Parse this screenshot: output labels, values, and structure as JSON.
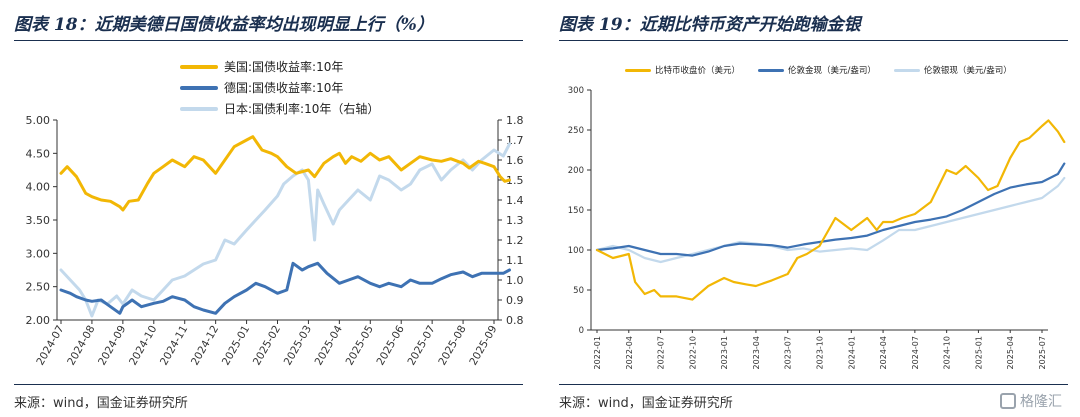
{
  "left": {
    "title": "图表 18：近期美德日国债收益率均出现明显上行（%）",
    "source": "来源：wind，国金证券研究所"
  },
  "right": {
    "title": "图表 19：近期比特币资产开始跑输金银",
    "source": "来源：wind，国金证券研究所"
  },
  "watermark": "格隆汇",
  "colors": {
    "gold": "#F2B705",
    "blue": "#3E72B3",
    "lightblue": "#C3D9EC",
    "title": "#1a2f4f"
  },
  "chart_data": [
    {
      "type": "line",
      "title": "",
      "ylim_left": [
        2.0,
        5.0
      ],
      "ylim_right": [
        0.8,
        1.8
      ],
      "yticks_left": [
        "5.00",
        "4.50",
        "4.00",
        "3.50",
        "3.00",
        "2.50",
        "2.00"
      ],
      "yticks_right": [
        "1.8",
        "1.7",
        "1.6",
        "1.5",
        "1.4",
        "1.3",
        "1.2",
        "1.1",
        "1.0",
        "0.9",
        "0.8"
      ],
      "x_ticks": [
        "2024-07",
        "2024-08",
        "2024-09",
        "2024-10",
        "2024-11",
        "2024-12",
        "2025-01",
        "2025-02",
        "2025-03",
        "2025-04",
        "2025-05",
        "2025-06",
        "2025-07",
        "2025-08",
        "2025-09"
      ],
      "grid": false,
      "legend_position": "top-center",
      "series": [
        {
          "name": "美国:国债收益率:10年",
          "axis": "left",
          "color": "#F2B705",
          "x": [
            0,
            0.2,
            0.5,
            0.8,
            1,
            1.3,
            1.6,
            1.9,
            2,
            2.2,
            2.5,
            2.8,
            3,
            3.3,
            3.6,
            4,
            4.3,
            4.6,
            5,
            5.3,
            5.6,
            6,
            6.2,
            6.5,
            6.8,
            7,
            7.3,
            7.6,
            8,
            8.2,
            8.5,
            8.8,
            9,
            9.2,
            9.4,
            9.7,
            10,
            10.3,
            10.6,
            11,
            11.3,
            11.6,
            12,
            12.3,
            12.6,
            13,
            13.2,
            13.5,
            13.7,
            14,
            14.2,
            14.35,
            14.5
          ],
          "values": [
            4.2,
            4.3,
            4.15,
            3.9,
            3.85,
            3.8,
            3.78,
            3.7,
            3.65,
            3.78,
            3.8,
            4.05,
            4.2,
            4.3,
            4.4,
            4.3,
            4.45,
            4.4,
            4.2,
            4.4,
            4.6,
            4.7,
            4.75,
            4.55,
            4.5,
            4.45,
            4.3,
            4.2,
            4.25,
            4.15,
            4.35,
            4.45,
            4.5,
            4.35,
            4.45,
            4.38,
            4.5,
            4.4,
            4.45,
            4.25,
            4.35,
            4.45,
            4.4,
            4.38,
            4.42,
            4.35,
            4.28,
            4.38,
            4.35,
            4.3,
            4.15,
            4.08,
            4.1
          ]
        },
        {
          "name": "德国:国债收益率:10年",
          "axis": "left",
          "color": "#3E72B3",
          "x": [
            0,
            0.3,
            0.5,
            0.8,
            1,
            1.3,
            1.6,
            1.9,
            2,
            2.3,
            2.6,
            3,
            3.3,
            3.6,
            4,
            4.3,
            4.6,
            5,
            5.3,
            5.6,
            6,
            6.3,
            6.6,
            7,
            7.3,
            7.5,
            7.8,
            8,
            8.3,
            8.6,
            9,
            9.3,
            9.6,
            10,
            10.3,
            10.6,
            11,
            11.3,
            11.6,
            12,
            12.3,
            12.6,
            13,
            13.3,
            13.6,
            14,
            14.3,
            14.5
          ],
          "values": [
            2.45,
            2.4,
            2.35,
            2.3,
            2.28,
            2.3,
            2.2,
            2.1,
            2.2,
            2.3,
            2.2,
            2.25,
            2.28,
            2.35,
            2.3,
            2.2,
            2.15,
            2.1,
            2.25,
            2.35,
            2.45,
            2.55,
            2.5,
            2.4,
            2.45,
            2.85,
            2.75,
            2.8,
            2.85,
            2.7,
            2.55,
            2.6,
            2.65,
            2.55,
            2.5,
            2.55,
            2.5,
            2.6,
            2.55,
            2.55,
            2.62,
            2.68,
            2.72,
            2.65,
            2.7,
            2.7,
            2.7,
            2.75
          ]
        },
        {
          "name": "日本:国债利率:10年（右轴）",
          "axis": "right",
          "color": "#C3D9EC",
          "x": [
            0,
            0.3,
            0.6,
            0.8,
            1,
            1.2,
            1.5,
            1.8,
            2,
            2.3,
            2.6,
            3,
            3.3,
            3.6,
            4,
            4.3,
            4.6,
            5,
            5.3,
            5.6,
            6,
            6.3,
            6.6,
            7,
            7.2,
            7.5,
            7.8,
            8,
            8.2,
            8.3,
            8.5,
            8.8,
            9,
            9.3,
            9.6,
            10,
            10.3,
            10.6,
            11,
            11.3,
            11.6,
            12,
            12.3,
            12.6,
            13,
            13.3,
            13.6,
            14,
            14.3,
            14.5
          ],
          "values": [
            1.05,
            1.0,
            0.95,
            0.9,
            0.82,
            0.9,
            0.88,
            0.92,
            0.88,
            0.95,
            0.92,
            0.9,
            0.95,
            1.0,
            1.02,
            1.05,
            1.08,
            1.1,
            1.2,
            1.18,
            1.25,
            1.3,
            1.35,
            1.42,
            1.48,
            1.52,
            1.55,
            1.5,
            1.2,
            1.45,
            1.38,
            1.28,
            1.35,
            1.4,
            1.45,
            1.4,
            1.52,
            1.5,
            1.45,
            1.48,
            1.55,
            1.58,
            1.5,
            1.55,
            1.6,
            1.55,
            1.6,
            1.65,
            1.62,
            1.68
          ]
        }
      ]
    },
    {
      "type": "line",
      "title": "",
      "ylim": [
        0,
        300
      ],
      "yticks": [
        "300",
        "250",
        "200",
        "150",
        "100",
        "50",
        "0"
      ],
      "x_ticks": [
        "2022-01",
        "2022-04",
        "2022-07",
        "2022-10",
        "2023-01",
        "2023-04",
        "2023-07",
        "2023-10",
        "2024-01",
        "2024-04",
        "2024-07",
        "2024-10",
        "2025-01",
        "2025-04",
        "2025-07"
      ],
      "grid": false,
      "legend_position": "top",
      "series": [
        {
          "name": "比特币收盘价（美元）",
          "color": "#F2B705",
          "x": [
            0,
            0.5,
            1,
            1.2,
            1.5,
            1.8,
            2,
            2.5,
            3,
            3.5,
            4,
            4.3,
            4.7,
            5,
            5.5,
            6,
            6.3,
            6.6,
            7,
            7.5,
            8,
            8.5,
            8.8,
            9,
            9.3,
            9.6,
            10,
            10.5,
            11,
            11.3,
            11.6,
            12,
            12.3,
            12.6,
            13,
            13.3,
            13.6,
            14,
            14.2,
            14.5,
            14.7
          ],
          "values": [
            100,
            90,
            95,
            60,
            45,
            50,
            42,
            42,
            38,
            55,
            65,
            60,
            57,
            55,
            62,
            70,
            90,
            95,
            105,
            140,
            125,
            140,
            125,
            135,
            135,
            140,
            145,
            160,
            200,
            195,
            205,
            190,
            175,
            180,
            215,
            235,
            240,
            255,
            262,
            248,
            235
          ]
        },
        {
          "name": "伦敦金现（美元/盎司）",
          "color": "#3E72B3",
          "x": [
            0,
            0.5,
            1,
            1.5,
            2,
            2.5,
            3,
            3.5,
            4,
            4.5,
            5,
            5.5,
            6,
            6.5,
            7,
            7.5,
            8,
            8.5,
            9,
            9.5,
            10,
            10.5,
            11,
            11.5,
            12,
            12.5,
            13,
            13.5,
            14,
            14.5,
            14.7
          ],
          "values": [
            100,
            102,
            105,
            100,
            95,
            95,
            93,
            98,
            105,
            108,
            107,
            106,
            103,
            107,
            110,
            113,
            115,
            118,
            125,
            130,
            135,
            138,
            142,
            150,
            160,
            170,
            178,
            182,
            185,
            195,
            208
          ]
        },
        {
          "name": "伦敦银现（美元/盎司）",
          "color": "#C3D9EC",
          "x": [
            0,
            0.5,
            1,
            1.5,
            2,
            2.5,
            3,
            3.5,
            4,
            4.5,
            5,
            5.5,
            6,
            6.5,
            7,
            7.5,
            8,
            8.5,
            9,
            9.5,
            10,
            10.5,
            11,
            11.5,
            12,
            12.5,
            13,
            13.5,
            14,
            14.5,
            14.7
          ],
          "values": [
            100,
            105,
            100,
            90,
            85,
            90,
            95,
            100,
            105,
            110,
            108,
            105,
            100,
            102,
            98,
            100,
            102,
            100,
            112,
            125,
            125,
            130,
            135,
            140,
            145,
            150,
            155,
            160,
            165,
            180,
            190
          ]
        }
      ]
    }
  ]
}
